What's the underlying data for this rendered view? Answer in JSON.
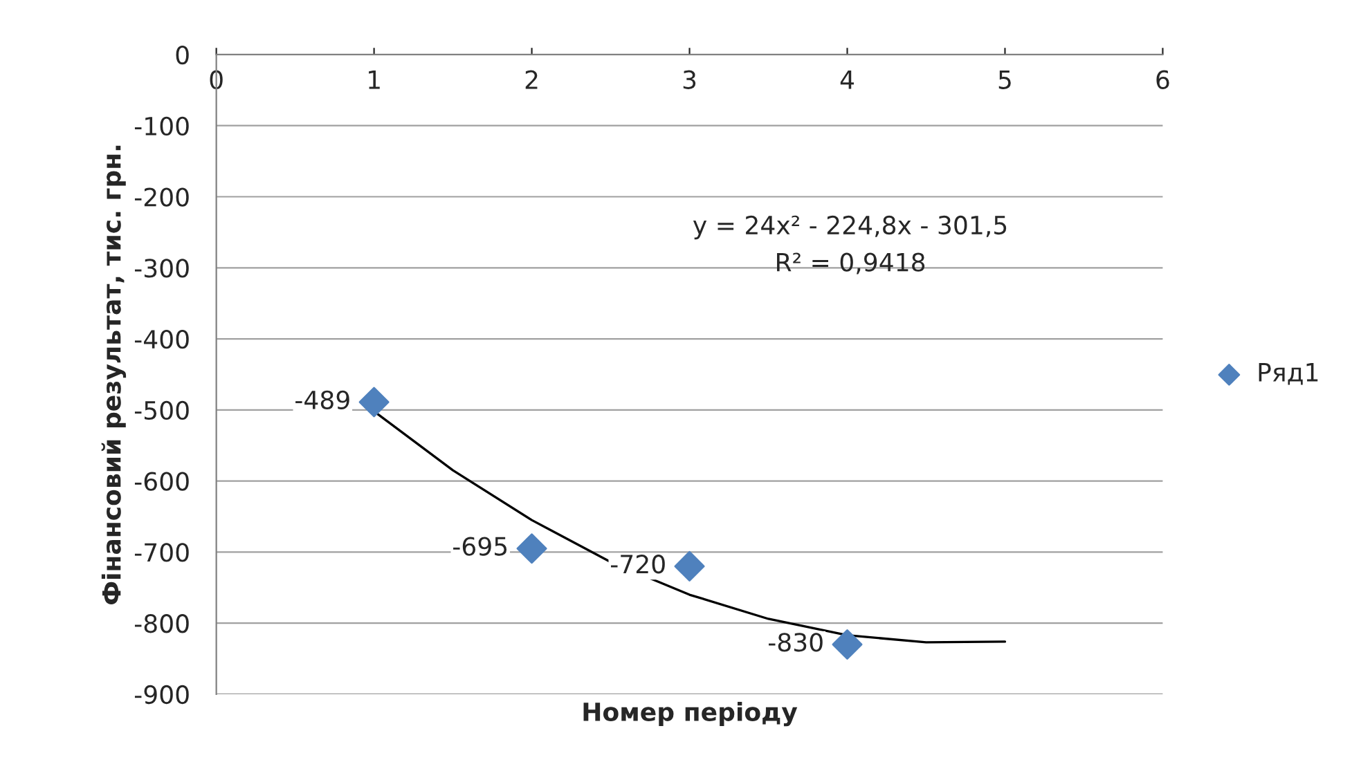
{
  "chart_data": {
    "type": "scatter",
    "xlabel": "Номер періоду",
    "ylabel": "Фінансовий результат, тис. грн.",
    "x": [
      1,
      2,
      3,
      4
    ],
    "series": [
      {
        "name": "Ряд1",
        "color": "#4f81bd",
        "values": [
          -489,
          -695,
          -720,
          -830
        ],
        "value_labels": [
          "-489",
          "-695",
          "-720",
          "-830"
        ],
        "marker": "diamond"
      },
      {
        "type": "line",
        "color": "#000000",
        "x": [
          1,
          1.5,
          2,
          2.5,
          3,
          3.5,
          4,
          4.5,
          5
        ],
        "values": [
          -502,
          -585,
          -655,
          -714,
          -760,
          -794,
          -817,
          -827,
          -826
        ],
        "marker": "none"
      }
    ],
    "annotations": [
      "y = 24x² - 224,8x - 301,5",
      "R² = 0,9418"
    ],
    "xlim": [
      0,
      6
    ],
    "xticks": [
      0,
      1,
      2,
      3,
      4,
      5,
      6
    ],
    "ylim": [
      -900,
      0
    ],
    "yticks": [
      -900,
      -800,
      -700,
      -600,
      -500,
      -400,
      -300,
      -200,
      -100,
      0
    ],
    "grid": "y",
    "legend": "right"
  }
}
